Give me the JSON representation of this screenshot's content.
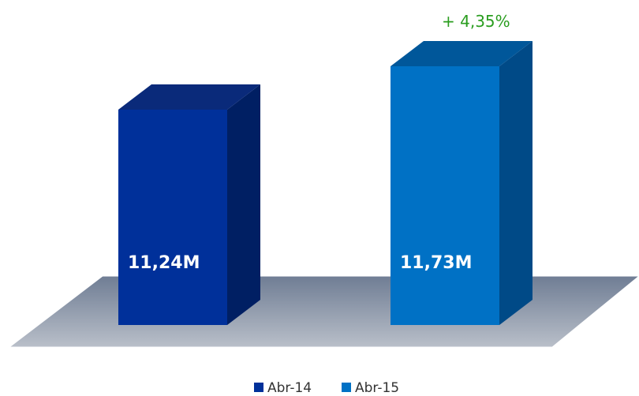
{
  "chart_data": {
    "type": "bar",
    "categories": [
      "Abr-14",
      "Abr-15"
    ],
    "values": [
      11.24,
      11.73
    ],
    "data_labels": [
      "11,24M",
      "11,73M"
    ],
    "annotation": "+ 4,35%",
    "series": [
      {
        "name": "Abr-14",
        "values": [
          11.24,
          null
        ]
      },
      {
        "name": "Abr-15",
        "values": [
          null,
          11.73
        ]
      }
    ],
    "colors": {
      "Abr-14": {
        "front": "#00309a",
        "side": "#001f63",
        "top": "#0a2a7a"
      },
      "Abr-15": {
        "front": "#0071c5",
        "side": "#004a87",
        "top": "#00579a"
      },
      "floor": "#9aa4b3",
      "annotation": "#2a9d1f"
    },
    "legend_position": "bottom",
    "grid": false,
    "style": "3d-column"
  }
}
